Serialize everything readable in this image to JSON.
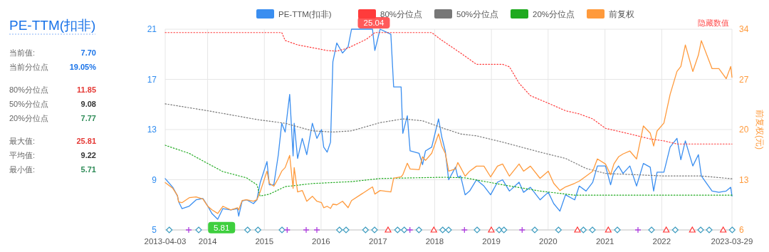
{
  "chart_data": [
    {
      "type": "other",
      "title": "PE-TTM(扣非)",
      "annotations": [
        "当前值:",
        "7.70",
        "当前分位点",
        "19.05%",
        "80%分位点",
        "11.85",
        "50%分位点",
        "9.08",
        "20%分位点",
        "7.77",
        "最大值:",
        "25.81",
        "平均值:",
        "9.22",
        "最小值:",
        "5.71"
      ],
      "colors": [
        "#666666",
        "#1a73e8",
        "#666666",
        "#1a73e8",
        "#666666",
        "#e53935",
        "#666666",
        "#333333",
        "#666666",
        "#2e8b57",
        "#666666",
        "#e53935",
        "#666666",
        "#333333",
        "#666666",
        "#2e8b57"
      ]
    },
    {
      "type": "line",
      "legend": "top",
      "grid": true,
      "y2label": "前复权(元)",
      "annotations": [
        "25.04",
        {
          "text": "5.81",
          "x": "2014-04-01",
          "y": 5.81
        },
        "隐藏数值"
      ],
      "xlim": [
        "2013-04-03",
        "2023-03-29"
      ],
      "xticks": [
        "2013-04-03",
        {
          "value": "2014-01-01",
          "label": "2014"
        },
        {
          "value": "2015-01-01",
          "label": "2015"
        },
        {
          "value": "2016-01-01",
          "label": "2016"
        },
        {
          "value": "2017-01-01",
          "label": "2017"
        },
        {
          "value": "2018-01-01",
          "label": "2018"
        },
        {
          "value": "2019-01-01",
          "label": "2019"
        },
        {
          "value": "2020-01-01",
          "label": "2020"
        },
        {
          "value": "2021-01-01",
          "label": "2021"
        },
        {
          "value": "2022-01-01",
          "label": "2022"
        },
        "2023-03-29"
      ],
      "ylim": [
        5,
        21
      ],
      "yticks": [
        5,
        9,
        13,
        17,
        21
      ],
      "y2lim": [
        6,
        34
      ],
      "y2ticks": [
        6,
        13,
        20,
        27,
        34
      ],
      "x": [
        "2013-04-03",
        "2013-05-22",
        "2013-06-21",
        "2013-06-28",
        "2013-07-20",
        "2013-09-05",
        "2013-10-19",
        "2013-12-02",
        "2014-01-02",
        "2014-01-29",
        "2014-03-07",
        "2014-04-09",
        "2014-05-30",
        "2014-07-12",
        "2014-07-20",
        "2014-08-11",
        "2014-09-09",
        "2014-10-23",
        "2014-11-14",
        "2014-12-05",
        "2015-01-18",
        "2015-02-02",
        "2015-03-03",
        "2015-04-01",
        "2015-04-23",
        "2015-05-15",
        "2015-06-13",
        "2015-07-05",
        "2015-07-12",
        "2015-08-03",
        "2015-09-02",
        "2015-10-01",
        "2015-11-06",
        "2015-12-05",
        "2016-01-04",
        "2016-01-18",
        "2016-02-09",
        "2016-03-02",
        "2016-03-17",
        "2016-04-11",
        "2016-05-18",
        "2016-06-23",
        "2016-07-15",
        "2016-11-27",
        "2016-12-12",
        "2017-01-15",
        "2017-03-25",
        "2017-04-12",
        "2017-05-30",
        "2017-06-10",
        "2017-07-09",
        "2017-07-27",
        "2017-09-23",
        "2017-10-15",
        "2017-11-03",
        "2017-12-13",
        "2018-01-26",
        "2018-02-16",
        "2018-03-10",
        "2018-04-01",
        "2018-05-15",
        "2018-05-30",
        "2018-06-17",
        "2018-07-16",
        "2018-08-14",
        "2018-09-27",
        "2018-11-14",
        "2018-12-27",
        "2019-02-09",
        "2019-03-14",
        "2019-04-27",
        "2019-06-28",
        "2019-07-27",
        "2019-09-09",
        "2019-11-10",
        "2020-01-02",
        "2020-02-06",
        "2020-03-17",
        "2020-04-22",
        "2020-06-20",
        "2020-07-19",
        "2020-09-01",
        "2020-10-14",
        "2020-11-13",
        "2021-01-04",
        "2021-02-06",
        "2021-02-27",
        "2021-03-29",
        "2021-04-27",
        "2021-06-10",
        "2021-07-23",
        "2021-09-05",
        "2021-10-19",
        "2021-11-10",
        "2021-12-02",
        "2022-01-15",
        "2022-02-24",
        "2022-04-09",
        "2022-05-04",
        "2022-06-02",
        "2022-07-20",
        "2022-08-25",
        "2022-09-13",
        "2022-11-21",
        "2023-01-04",
        "2023-02-20",
        "2023-03-21",
        "2023-03-29"
      ],
      "series": [
        {
          "name": "PE-TTM(扣非)",
          "color": "#3a8ef0",
          "values": [
            9.09,
            8.4,
            7.7,
            7.27,
            6.7,
            6.9,
            7.4,
            7.5,
            6.9,
            6.3,
            5.85,
            6.7,
            6.6,
            6.7,
            6.1,
            7.3,
            7.4,
            7.1,
            7.4,
            8.75,
            10.45,
            8.6,
            8.6,
            11.0,
            13.5,
            12.8,
            15.8,
            10.9,
            13.5,
            10.7,
            12.3,
            11.0,
            13.5,
            12.3,
            13.0,
            11.6,
            11.2,
            12.0,
            18.4,
            19.9,
            19.1,
            19.6,
            21,
            21,
            19.3,
            21,
            20.6,
            16.4,
            16.4,
            12.7,
            14.1,
            11.3,
            11.1,
            10.2,
            11.3,
            11.6,
            13.85,
            12.4,
            11.3,
            9.0,
            10.0,
            9.2,
            9.3,
            7.8,
            8.1,
            9.0,
            8.5,
            7.8,
            8.8,
            9.0,
            8.1,
            8.8,
            8.0,
            8.4,
            7.4,
            8.0,
            7.1,
            6.5,
            7.8,
            7.4,
            8.5,
            8.1,
            8.8,
            10.1,
            10.1,
            8.6,
            9.6,
            10.1,
            9.5,
            10.1,
            8.5,
            10.3,
            10.0,
            8.1,
            9.6,
            9.6,
            11.6,
            12.3,
            10.6,
            12.1,
            10.1,
            11.0,
            9.3,
            8.1,
            8.0,
            8.1,
            8.4,
            7.7
          ]
        },
        {
          "name": "80%分位点",
          "color": "#ff3b3b",
          "line_style": "dotted",
          "x": [
            "2013-04-03",
            "2015-04-23",
            "2015-05-15",
            "2015-08-03",
            "2016-02-09",
            "2016-04-11",
            "2016-06-23",
            "2016-10-19",
            "2016-12-12",
            "2017-12-13",
            "2018-02-06",
            "2018-06-17",
            "2018-09-27",
            "2019-03-14",
            "2019-04-27",
            "2019-06-28",
            "2019-09-09",
            "2020-01-02",
            "2020-04-22",
            "2020-07-19",
            "2020-10-14",
            "2021-01-04",
            "2021-06-10",
            "2021-10-19",
            "2022-01-15",
            "2022-04-09",
            "2023-03-29"
          ],
          "values": [
            20.73,
            20.73,
            20.1,
            19.75,
            19.3,
            19.25,
            19.5,
            20.2,
            20.73,
            20.73,
            20.2,
            19.1,
            18.2,
            18.2,
            18.0,
            16.7,
            15.7,
            15.1,
            14.5,
            14.25,
            13.85,
            13.1,
            12.65,
            12.25,
            12.1,
            11.85,
            11.85
          ]
        },
        {
          "name": "50%分位点",
          "color": "#777777",
          "line_style": "dotted",
          "x": [
            "2013-04-03",
            "2014-01-02",
            "2014-11-14",
            "2015-05-15",
            "2015-11-06",
            "2016-03-17",
            "2016-07-15",
            "2017-01-15",
            "2017-06-10",
            "2017-10-15",
            "2018-03-10",
            "2018-06-17",
            "2018-09-27",
            "2019-03-14",
            "2019-11-10",
            "2020-04-22",
            "2020-09-01",
            "2021-01-04",
            "2021-07-23",
            "2022-01-15",
            "2022-09-13",
            "2023-03-29"
          ],
          "values": [
            15.05,
            14.5,
            13.8,
            13.5,
            12.9,
            12.8,
            12.9,
            13.55,
            13.85,
            13.7,
            13.05,
            12.65,
            12.5,
            12.0,
            11.2,
            10.7,
            9.9,
            9.5,
            9.4,
            9.3,
            9.3,
            9.08
          ]
        },
        {
          "name": "20%分位点",
          "color": "#1faa1f",
          "line_style": "dotted",
          "x": [
            "2013-04-03",
            "2013-09-05",
            "2013-12-02",
            "2014-04-09",
            "2014-09-09",
            "2014-11-14",
            "2014-12-05",
            "2015-02-02",
            "2015-05-15",
            "2015-11-06",
            "2016-07-15",
            "2017-01-15",
            "2018-03-10",
            "2018-07-16",
            "2019-03-14",
            "2019-11-10",
            "2020-06-20",
            "2023-03-29"
          ],
          "values": [
            11.75,
            11.1,
            10.5,
            9.65,
            9.15,
            8.6,
            7.7,
            7.85,
            8.45,
            8.7,
            8.85,
            9.1,
            9.2,
            9.15,
            8.6,
            8.1,
            7.77,
            7.77
          ]
        },
        {
          "name": "前复权",
          "color": "#ff9a3c",
          "axis": "y2",
          "values": [
            12.6,
            11.8,
            10.8,
            9.9,
            9.8,
            10.5,
            10.6,
            10.3,
            9.3,
            8.8,
            8.3,
            9.3,
            8.8,
            9.1,
            8.8,
            10.1,
            10.2,
            10.0,
            10.2,
            11.3,
            14.2,
            12.5,
            12.1,
            13.2,
            14.2,
            14.7,
            16.4,
            11.8,
            14.7,
            11.3,
            11.5,
            10.0,
            10.7,
            10.0,
            9.8,
            9.1,
            9.3,
            9.0,
            9.6,
            9.5,
            10.0,
            9.1,
            10.1,
            12.0,
            11.0,
            11.5,
            11.3,
            13.2,
            13.4,
            13.7,
            15.3,
            14.5,
            14.4,
            16.2,
            15.7,
            16.7,
            19.4,
            17.7,
            16.7,
            14.2,
            14.5,
            15.4,
            14.7,
            13.5,
            14.2,
            14.9,
            14.9,
            13.4,
            14.9,
            15.2,
            13.5,
            15.2,
            14.2,
            14.9,
            13.2,
            14.2,
            12.5,
            11.5,
            12.0,
            12.5,
            12.8,
            13.5,
            14.2,
            15.9,
            15.2,
            13.7,
            15.2,
            16.2,
            16.6,
            17.0,
            15.9,
            20.5,
            19.5,
            17.7,
            19.8,
            20.9,
            24.9,
            28.1,
            28.8,
            31.8,
            28.1,
            30.4,
            32.4,
            28.5,
            28.5,
            27.1,
            28.8,
            27.3
          ]
        }
      ]
    }
  ]
}
